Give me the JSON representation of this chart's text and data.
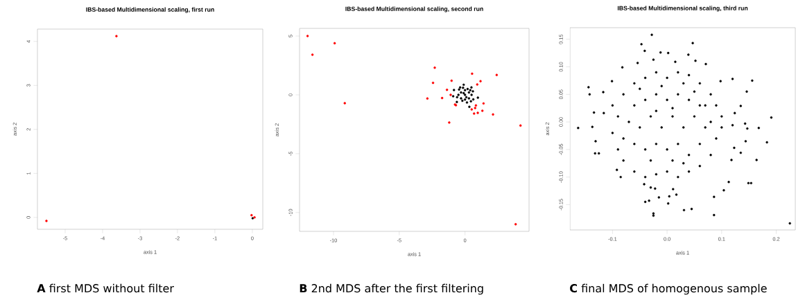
{
  "chart_data": [
    {
      "type": "scatter",
      "title": "IBS-based Multidimensional scaling, first run",
      "xlabel": "axis 1",
      "ylabel": "axis 2",
      "xlim": [
        -5.74,
        0.28
      ],
      "ylim": [
        -0.27,
        4.28
      ],
      "xticks": [
        -5,
        -4,
        -3,
        -2,
        -1,
        0
      ],
      "yticks": [
        0,
        1,
        2,
        3,
        4
      ],
      "series": [
        {
          "color": "#000000",
          "x": [
            0.01
          ],
          "values": [
            -0.02
          ]
        },
        {
          "color": "#ff0000",
          "x": [
            -5.5,
            -3.63,
            -0.02,
            0.06
          ],
          "values": [
            -0.08,
            4.12,
            0.05,
            0
          ]
        }
      ],
      "annotations": [
        "**A** first MDS without filter"
      ]
    },
    {
      "type": "scatter",
      "title": "IBS-based Multidimensional scaling, second run",
      "xlabel": "axis 1",
      "ylabel": "axis 2",
      "xlim": [
        -12.58,
        4.87
      ],
      "ylim": [
        -11.6,
        5.65
      ],
      "xticks": [
        -10,
        -5,
        0
      ],
      "yticks": [
        -10,
        -5,
        0,
        5
      ],
      "series": [
        {
          "color": "#000000",
          "x": [
            -0.1,
            -0.84,
            -0.9,
            -0.62,
            0.33,
            0.98,
            0.49,
            0.63,
            -0.37,
            0,
            0.3,
            -0.3,
            0.3,
            -0.3,
            0,
            0,
            0.5,
            -0.5,
            0.2,
            -0.2,
            0.45,
            -0.45,
            0.1,
            -0.1,
            0.6,
            -0.6,
            0.15,
            -0.15,
            0.4
          ],
          "values": [
            0.86,
            0.41,
            -0.12,
            -0.61,
            -1.02,
            -0.24,
            0.63,
            -0.39,
            0.63,
            0,
            0.2,
            0.2,
            -0.3,
            -0.3,
            0.4,
            -0.4,
            0,
            0,
            0.5,
            -0.5,
            -0.55,
            0.45,
            -0.2,
            0.15,
            0.3,
            -0.2,
            -0.65,
            0.6,
            0.4
          ]
        },
        {
          "color": "#ff0000",
          "x": [
            -11.97,
            -9.91,
            -11.6,
            -9.14,
            -2.3,
            -2.43,
            -2.86,
            -1.74,
            -1.37,
            -1.09,
            -1.02,
            -1.2,
            -0.76,
            -0.69,
            0.54,
            0.93,
            1.18,
            2.41,
            1.41,
            0.83,
            0.77,
            0.51,
            0.69,
            0.97,
            1.32,
            2.13,
            4.22,
            3.85
          ],
          "values": [
            5.0,
            4.39,
            3.41,
            -0.71,
            2.31,
            1.02,
            -0.31,
            -0.27,
            0.43,
            0,
            1.2,
            -2.35,
            -0.82,
            -0.88,
            1.8,
            0.88,
            1.16,
            1.69,
            -0.73,
            -0.9,
            -1.12,
            -1.24,
            -1.59,
            -1.53,
            -1.35,
            -1.67,
            -2.61,
            -11.0
          ]
        }
      ],
      "annotations": [
        "**B** 2nd MDS after the first filtering"
      ]
    },
    {
      "type": "scatter",
      "title": "IBS-based Multidimensional scaling, third run",
      "xlabel": "axis 1",
      "ylabel": "axis 2",
      "xlim": [
        -0.178,
        0.235
      ],
      "ylim": [
        -0.196,
        0.171
      ],
      "xticks": [
        {
          "value": -0.1,
          "label": "-0.1"
        },
        {
          "value": 0,
          "label": "0.0"
        },
        {
          "value": 0.1,
          "label": "0.1"
        },
        {
          "value": 0.2,
          "label": "0.2"
        }
      ],
      "yticks": [
        {
          "value": -0.15,
          "label": "-0.15"
        },
        {
          "value": -0.1,
          "label": "-0.10"
        },
        {
          "value": -0.05,
          "label": "-0.05"
        },
        {
          "value": 0,
          "label": "0.00"
        },
        {
          "value": 0.05,
          "label": "0.05"
        },
        {
          "value": 0.1,
          "label": "0.10"
        },
        {
          "value": 0.15,
          "label": "0.15"
        }
      ],
      "series": [
        {
          "color": "#000000",
          "x": [
            -0.028,
            -0.047,
            0.047,
            -0.041,
            -0.012,
            0.002,
            0.039,
            -0.144,
            -0.142,
            0.156,
            0.146,
            -0.163,
            -0.134,
            -0.137,
            0.191,
            0.168,
            0.183,
            0.164,
            -0.131,
            -0.132,
            -0.125,
            0.149,
            0.154,
            0.104,
            0.113,
            0.086,
            0.086,
            0.045,
            0.031,
            -0.025,
            -0.025,
            -0.04,
            -0.033,
            -0.015,
            0.002,
            0.004,
            0.017,
            0.011,
            -0.022,
            -0.03,
            -0.042,
            -0.085,
            -0.092,
            0.12,
            0.143,
            0.147,
            0.144,
            0.123,
            0.135,
            0.118,
            0.124,
            0.135,
            0.12,
            0.098,
            0.071,
            -0.116,
            -0.117,
            -0.101,
            -0.082,
            -0.054,
            -0.025,
            0.015,
            0.052,
            0.225,
            -0.08,
            -0.06,
            -0.04,
            -0.02,
            0,
            0.02,
            0.04,
            0.06,
            0.08,
            0.09,
            -0.1,
            -0.09,
            -0.1,
            -0.09,
            -0.08,
            -0.06,
            -0.04,
            -0.02,
            0,
            0.02,
            0.04,
            0.06,
            0.08,
            0.09,
            0.1,
            0.1,
            -0.06,
            -0.04,
            -0.02,
            0,
            0.02,
            0.04,
            0.06,
            -0.07,
            -0.05,
            -0.03,
            -0.01,
            0.01,
            0.03,
            0.05,
            0.07,
            -0.06,
            -0.04,
            -0.02,
            0,
            0.02,
            0.04,
            0.06,
            -0.03,
            0.01,
            0.03,
            -0.05,
            0.03,
            0.05,
            0.07,
            -0.08,
            0.08,
            -0.01,
            0.01,
            -0.02
          ],
          "values": [
            0.158,
            0.141,
            0.143,
            0.129,
            0.126,
            0.125,
            0.122,
            0.063,
            0.05,
            0.075,
            0.055,
            -0.011,
            0.017,
            -0.009,
            0.008,
            -0.011,
            -0.037,
            -0.069,
            -0.035,
            -0.057,
            -0.057,
            -0.111,
            -0.111,
            -0.124,
            -0.109,
            -0.169,
            -0.136,
            -0.158,
            -0.16,
            -0.166,
            -0.17,
            -0.145,
            -0.143,
            -0.137,
            -0.148,
            -0.135,
            -0.132,
            -0.122,
            -0.121,
            -0.119,
            -0.113,
            -0.1,
            -0.087,
            -0.006,
            -0.003,
            -0.012,
            -0.035,
            -0.047,
            -0.056,
            -0.069,
            0.016,
            0.029,
            0.078,
            0.074,
            0.105,
            0.016,
            0.054,
            0.074,
            0.099,
            0.107,
            0.113,
            0.109,
            0.111,
            -0.184,
            0.05,
            0.07,
            0.08,
            0.09,
            0.08,
            0.09,
            0.085,
            0.07,
            0.05,
            0.03,
            0.03,
            0.01,
            -0.02,
            -0.05,
            -0.07,
            -0.09,
            -0.1,
            -0.095,
            -0.09,
            -0.1,
            -0.09,
            -0.08,
            -0.06,
            -0.03,
            -0.01,
            0.01,
            0.03,
            0.04,
            0.05,
            0.04,
            0.05,
            0.04,
            0.03,
            0,
            -0.01,
            0.01,
            -0.01,
            0.01,
            -0.01,
            0.01,
            -0.01,
            -0.04,
            -0.05,
            -0.04,
            -0.05,
            -0.04,
            -0.06,
            -0.04,
            -0.07,
            -0.07,
            -0.075,
            0.06,
            0.07,
            0.055,
            0.03,
            -0.03,
            0,
            0.065,
            0.025,
            0.02
          ]
        }
      ],
      "annotations": [
        "**C** final MDS of homogenous sample"
      ]
    }
  ]
}
